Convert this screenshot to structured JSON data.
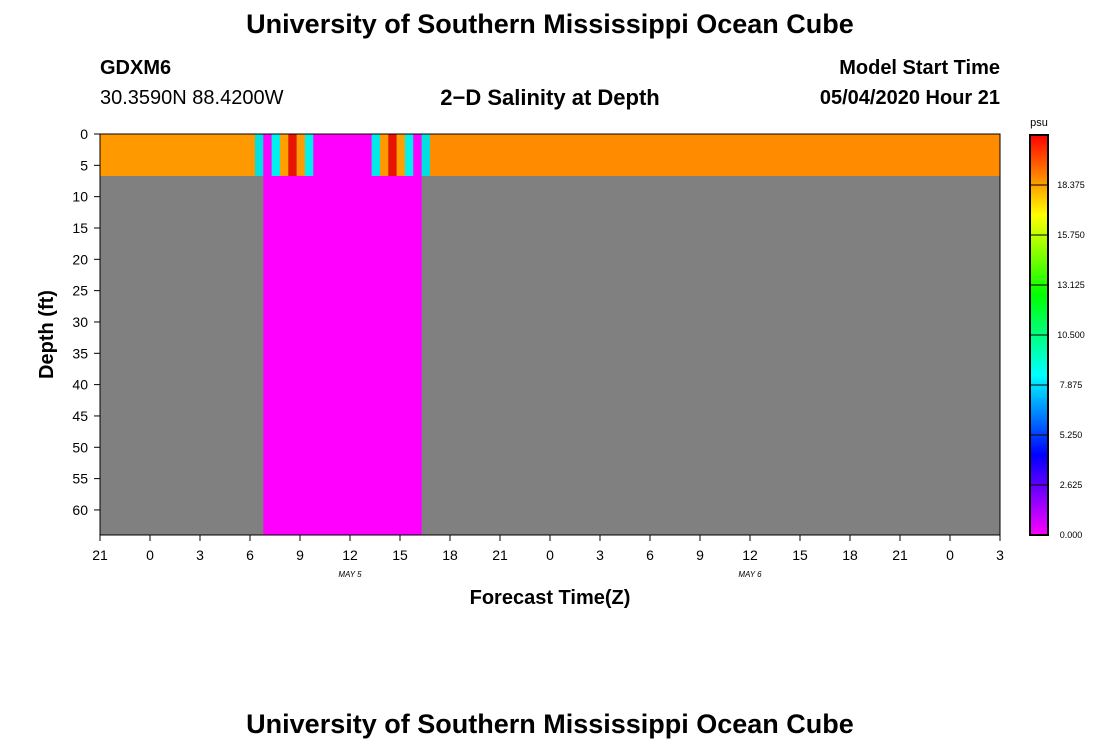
{
  "page": {
    "title_top": "University of Southern Mississippi Ocean Cube",
    "title_bottom": "University of Southern Mississippi Ocean Cube",
    "station": "GDXM6",
    "coords": "30.3590N 88.4200W",
    "plot_title": "2−D Salinity at Depth",
    "model_start_label": "Model Start Time",
    "model_start_value": "05/04/2020 Hour 21"
  },
  "chart_data": {
    "type": "heatmap",
    "title": "2−D Salinity at Depth",
    "xlabel": "Forecast Time(Z)",
    "ylabel": "Depth (ft)",
    "x_range_hours": [
      0,
      54
    ],
    "y_range_ft": [
      0,
      64
    ],
    "x_ticks": [
      {
        "h": 0,
        "label": "21"
      },
      {
        "h": 3,
        "label": "0"
      },
      {
        "h": 6,
        "label": "3"
      },
      {
        "h": 9,
        "label": "6"
      },
      {
        "h": 12,
        "label": "9"
      },
      {
        "h": 15,
        "label": "12"
      },
      {
        "h": 18,
        "label": "15"
      },
      {
        "h": 21,
        "label": "18"
      },
      {
        "h": 24,
        "label": "21"
      },
      {
        "h": 27,
        "label": "0"
      },
      {
        "h": 30,
        "label": "3"
      },
      {
        "h": 33,
        "label": "6"
      },
      {
        "h": 36,
        "label": "9"
      },
      {
        "h": 39,
        "label": "12"
      },
      {
        "h": 42,
        "label": "15"
      },
      {
        "h": 45,
        "label": "18"
      },
      {
        "h": 48,
        "label": "21"
      },
      {
        "h": 51,
        "label": "0"
      },
      {
        "h": 54,
        "label": "3"
      }
    ],
    "y_ticks": [
      0,
      5,
      10,
      15,
      20,
      25,
      30,
      35,
      40,
      45,
      50,
      55,
      60
    ],
    "date_labels": [
      {
        "h": 15,
        "label": "MAY 5"
      },
      {
        "h": 39,
        "label": "MAY 6"
      }
    ],
    "no_data_color": "#808080",
    "bands": [
      {
        "x0": 0,
        "x1": 9.3,
        "y0": 0,
        "y1": 6.7,
        "color": "#ff9900"
      },
      {
        "x0": 9.3,
        "x1": 9.8,
        "y0": 0,
        "y1": 6.7,
        "color": "#00e0e0"
      },
      {
        "x0": 9.8,
        "x1": 10.3,
        "y0": 0,
        "y1": 6.7,
        "color": "#ff00ff"
      },
      {
        "x0": 10.3,
        "x1": 10.8,
        "y0": 0,
        "y1": 6.7,
        "color": "#00f0f0"
      },
      {
        "x0": 10.8,
        "x1": 11.3,
        "y0": 0,
        "y1": 6.7,
        "color": "#ffa000"
      },
      {
        "x0": 11.3,
        "x1": 11.8,
        "y0": 0,
        "y1": 6.7,
        "color": "#e81400"
      },
      {
        "x0": 11.8,
        "x1": 12.3,
        "y0": 0,
        "y1": 6.7,
        "color": "#ff9a00"
      },
      {
        "x0": 12.3,
        "x1": 12.8,
        "y0": 0,
        "y1": 6.7,
        "color": "#00f0f0"
      },
      {
        "x0": 12.8,
        "x1": 16.3,
        "y0": 0,
        "y1": 6.7,
        "color": "#ff00ff"
      },
      {
        "x0": 16.3,
        "x1": 16.8,
        "y0": 0,
        "y1": 6.7,
        "color": "#00e8e8"
      },
      {
        "x0": 16.8,
        "x1": 17.3,
        "y0": 0,
        "y1": 6.7,
        "color": "#ff9900"
      },
      {
        "x0": 17.3,
        "x1": 17.8,
        "y0": 0,
        "y1": 6.7,
        "color": "#e81400"
      },
      {
        "x0": 17.8,
        "x1": 18.3,
        "y0": 0,
        "y1": 6.7,
        "color": "#ffa000"
      },
      {
        "x0": 18.3,
        "x1": 18.8,
        "y0": 0,
        "y1": 6.7,
        "color": "#00f0f0"
      },
      {
        "x0": 18.8,
        "x1": 19.3,
        "y0": 0,
        "y1": 6.7,
        "color": "#ff00ff"
      },
      {
        "x0": 19.3,
        "x1": 19.8,
        "y0": 0,
        "y1": 6.7,
        "color": "#00e0e0"
      },
      {
        "x0": 19.8,
        "x1": 54,
        "y0": 0,
        "y1": 6.7,
        "color": "#ff8c00"
      },
      {
        "x0": 9.8,
        "x1": 19.3,
        "y0": 6.7,
        "y1": 64,
        "color": "#ff00ff"
      }
    ],
    "colorbar": {
      "unit": "psu",
      "min": 0,
      "max": 21,
      "tick_values": [
        "0.000",
        "2.625",
        "5.250",
        "7.875",
        "10.500",
        "13.125",
        "15.750",
        "18.375"
      ],
      "colors": [
        "#ff00ff",
        "#8000ff",
        "#0000ff",
        "#0080ff",
        "#00ffff",
        "#00ff80",
        "#00ff00",
        "#80ff00",
        "#ffff00",
        "#ff8000",
        "#ff0000"
      ]
    }
  }
}
